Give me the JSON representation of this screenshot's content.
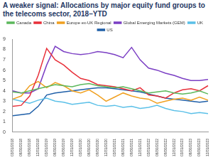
{
  "chart_data": {
    "type": "line",
    "title": "A weaker signal: Allocations by major equity fund groups to the telecoms sector, 2018–YTD",
    "categories": [
      "03/31/2018",
      "06/30/2018",
      "09/30/2018",
      "12/31/2018",
      "03/31/2019",
      "06/30/2019",
      "09/30/2019",
      "12/31/2019",
      "03/31/2020",
      "06/30/2020",
      "09/30/2020",
      "12/31/2020",
      "03/31/2021",
      "06/30/2021",
      "09/30/2021",
      "12/31/2021",
      "03/31/2022",
      "06/30/2022",
      "09/30/2022",
      "12/31/2022",
      "03/31/2023",
      "06/30/2023",
      "09/30/2023",
      "12/31/2023"
    ],
    "series": [
      {
        "name": "Canada",
        "color": "#5cb85c",
        "values": [
          3.9,
          3.8,
          4.0,
          4.2,
          4.4,
          4.6,
          4.5,
          4.4,
          4.6,
          4.7,
          4.5,
          4.4,
          4.3,
          4.4,
          4.2,
          4.0,
          3.8,
          3.9,
          4.0,
          3.8,
          3.7,
          3.8,
          4.0,
          3.7
        ]
      },
      {
        "name": "China",
        "color": "#e8303a",
        "values": [
          2.5,
          2.6,
          3.5,
          5.5,
          8.1,
          7.0,
          6.5,
          5.8,
          5.2,
          5.0,
          4.6,
          4.5,
          4.4,
          4.2,
          4.0,
          4.3,
          3.6,
          3.5,
          3.3,
          3.8,
          4.1,
          4.2,
          4.0,
          4.5
        ]
      },
      {
        "name": "Europe ex-UK Regional",
        "color": "#f0a020",
        "values": [
          3.2,
          3.5,
          4.5,
          4.9,
          4.3,
          4.8,
          4.5,
          4.0,
          3.8,
          4.1,
          3.6,
          3.0,
          3.4,
          3.8,
          3.5,
          3.3,
          3.2,
          2.8,
          3.0,
          3.2,
          3.3,
          3.1,
          3.4,
          3.1
        ]
      },
      {
        "name": "Global Emerging Markets (GEM)",
        "color": "#7b3fc4",
        "values": [
          4.0,
          3.8,
          3.8,
          4.2,
          6.5,
          8.3,
          7.8,
          7.6,
          7.5,
          7.6,
          7.8,
          7.7,
          7.5,
          7.2,
          8.2,
          7.0,
          6.2,
          6.0,
          5.7,
          5.5,
          5.2,
          5.0,
          5.0,
          5.1
        ]
      },
      {
        "name": "UK",
        "color": "#5bc0e8",
        "values": [
          3.2,
          3.0,
          2.8,
          3.1,
          3.3,
          3.0,
          2.9,
          2.7,
          2.8,
          2.9,
          2.6,
          2.5,
          2.6,
          2.4,
          2.5,
          2.3,
          2.4,
          2.6,
          2.3,
          2.1,
          2.0,
          1.8,
          1.9,
          1.8
        ]
      },
      {
        "name": "US",
        "color": "#1f5fa8",
        "values": [
          1.6,
          1.7,
          1.8,
          2.5,
          3.6,
          3.8,
          3.9,
          4.0,
          4.1,
          4.2,
          4.3,
          4.3,
          4.2,
          4.1,
          4.0,
          3.9,
          3.7,
          3.5,
          3.3,
          3.2,
          3.1,
          3.0,
          2.9,
          3.0
        ]
      }
    ],
    "ylim": [
      0,
      9
    ],
    "yticks": [
      0,
      1,
      2,
      3,
      4,
      5,
      6,
      7,
      8,
      9
    ],
    "grid": false,
    "legend": "top"
  }
}
